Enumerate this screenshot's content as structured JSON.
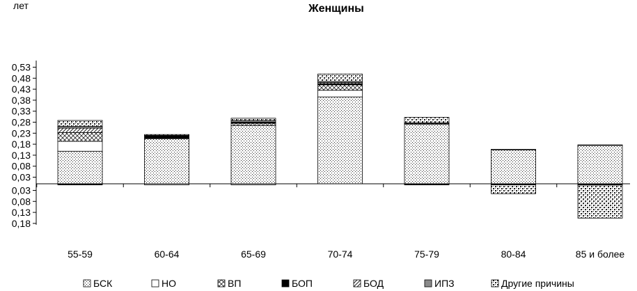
{
  "chart_data": {
    "type": "bar",
    "stacked": true,
    "title": "Женщины",
    "ylabel": "лет",
    "xlabel": "",
    "ylim": [
      -0.18,
      0.56
    ],
    "y_ticks": [
      0.53,
      0.48,
      0.43,
      0.38,
      0.33,
      0.28,
      0.23,
      0.18,
      0.13,
      0.08,
      0.03,
      -0.03,
      -0.08,
      -0.13,
      -0.18
    ],
    "y_tick_labels": [
      "0,53",
      "0,48",
      "0,43",
      "0,38",
      "0,33",
      "0,28",
      "0,23",
      "0,18",
      "0,13",
      "0,08",
      "0,03",
      "0,03",
      "0,08",
      "0,13",
      "0,18"
    ],
    "categories": [
      "55-59",
      "60-64",
      "65-69",
      "70-74",
      "75-79",
      "80-84",
      "85 и более"
    ],
    "category_labels_visible": [
      "55-59",
      "60-64",
      "65-69",
      "70-74",
      "75-79",
      "80-84",
      "85 и более"
    ],
    "grid": false,
    "legend_position": "bottom",
    "series": [
      {
        "name": "БСК",
        "pattern": "dots",
        "values": [
          0.148,
          0.205,
          0.265,
          0.395,
          0.27,
          0.155,
          0.175
        ]
      },
      {
        "name": "НО",
        "pattern": "white",
        "values": [
          0.045,
          -0.005,
          -0.005,
          0.03,
          0.0,
          0.0,
          0.0
        ]
      },
      {
        "name": "ВП",
        "pattern": "cross",
        "values": [
          0.04,
          0.0,
          0.01,
          0.025,
          0.005,
          0.0,
          0.0
        ]
      },
      {
        "name": "БОП",
        "pattern": "black",
        "values": [
          -0.005,
          0.015,
          0.005,
          0.005,
          -0.005,
          -0.005,
          -0.006
        ]
      },
      {
        "name": "БОД",
        "pattern": "diag",
        "values": [
          0.02,
          0.0,
          0.0,
          0.005,
          0.0,
          0.0,
          0.0
        ]
      },
      {
        "name": "ИПЗ",
        "pattern": "gray",
        "values": [
          0.008,
          0.0,
          0.008,
          0.005,
          0.002,
          0.002,
          0.002
        ]
      },
      {
        "name": "Другие причины",
        "pattern": "checker",
        "values": [
          0.027,
          0.004,
          0.01,
          0.034,
          0.025,
          -0.04,
          -0.15
        ]
      }
    ]
  }
}
